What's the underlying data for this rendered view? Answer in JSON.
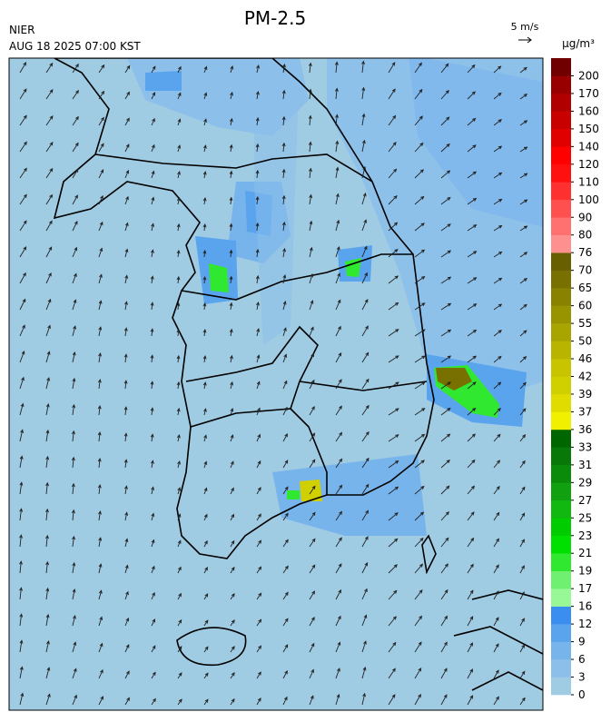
{
  "header": {
    "title": "PM-2.5",
    "source": "NIER",
    "datetime": "AUG 18 2025 07:00 KST"
  },
  "wind_reference": {
    "label": "5 m/s"
  },
  "colorbar": {
    "unit": "μg/m³",
    "levels": [
      0,
      3,
      6,
      9,
      12,
      16,
      17,
      19,
      21,
      23,
      25,
      27,
      29,
      31,
      33,
      36,
      37,
      39,
      42,
      46,
      50,
      55,
      60,
      65,
      70,
      76,
      80,
      90,
      100,
      110,
      120,
      140,
      150,
      160,
      170,
      200
    ],
    "colors": [
      "#9fcbe3",
      "#8cc0ea",
      "#78b4ec",
      "#5aa4ee",
      "#3a8ef0",
      "#98f898",
      "#70f070",
      "#30e830",
      "#00e000",
      "#00cc00",
      "#10b810",
      "#10a010",
      "#0a8c0a",
      "#087808",
      "#006600",
      "#f0f000",
      "#e0dc00",
      "#d0d000",
      "#c8c400",
      "#b8b400",
      "#a8a400",
      "#989400",
      "#888200",
      "#787000",
      "#686000",
      "#ff9090",
      "#ff7070",
      "#ff5050",
      "#ff3030",
      "#ff1010",
      "#ff0000",
      "#e00000",
      "#c80000",
      "#b00000",
      "#980000",
      "#700000"
    ]
  }
}
